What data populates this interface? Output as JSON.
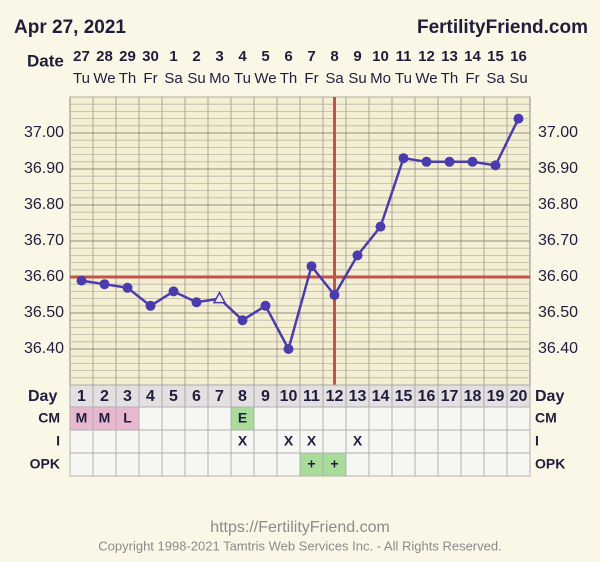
{
  "chart_data": {
    "type": "line",
    "title": "Apr 27, 2021",
    "site": "FertilityFriend.com",
    "date_label": "Date",
    "dates": [
      "27",
      "28",
      "29",
      "30",
      "1",
      "2",
      "3",
      "4",
      "5",
      "6",
      "7",
      "8",
      "9",
      "10",
      "11",
      "12",
      "13",
      "14",
      "15",
      "16"
    ],
    "weekdays": [
      "Tu",
      "We",
      "Th",
      "Fr",
      "Sa",
      "Su",
      "Mo",
      "Tu",
      "We",
      "Th",
      "Fr",
      "Sa",
      "Su",
      "Mo",
      "Tu",
      "We",
      "Th",
      "Fr",
      "Sa",
      "Su"
    ],
    "day_label": "Day",
    "categories": [
      1,
      2,
      3,
      4,
      5,
      6,
      7,
      8,
      9,
      10,
      11,
      12,
      13,
      14,
      15,
      16,
      17,
      18,
      19,
      20
    ],
    "values": [
      36.59,
      36.58,
      36.57,
      36.52,
      36.56,
      36.53,
      36.54,
      36.48,
      36.52,
      36.4,
      36.63,
      36.55,
      36.66,
      36.74,
      36.93,
      36.92,
      36.92,
      36.92,
      36.91,
      37.04
    ],
    "color": "#4b3cae",
    "hollow_points": [
      7
    ],
    "coverline": 36.6,
    "ovulation_day": 12,
    "marker_line_color": "#c55149",
    "ylim": [
      36.3,
      37.1
    ],
    "yticks": [
      {
        "value": 36.4,
        "label": "36.40"
      },
      {
        "value": 36.5,
        "label": "36.50"
      },
      {
        "value": 36.6,
        "label": "36.60"
      },
      {
        "value": 36.7,
        "label": "36.70"
      },
      {
        "value": 36.8,
        "label": "36.80"
      },
      {
        "value": 36.9,
        "label": "36.90"
      },
      {
        "value": 37,
        "label": "37.00"
      }
    ],
    "rows": [
      {
        "label": "CM",
        "values": [
          "M",
          "M",
          "L",
          null,
          null,
          null,
          null,
          "E",
          null,
          null,
          null,
          null,
          null,
          null,
          null,
          null,
          null,
          null,
          null,
          null
        ],
        "colors": {
          "M": "#e8b8d0",
          "L": "#e8b8d0",
          "E": "#a9dc9a"
        }
      },
      {
        "label": "I",
        "values": [
          null,
          null,
          null,
          null,
          null,
          null,
          null,
          "X",
          null,
          "X",
          "X",
          null,
          "X",
          null,
          null,
          null,
          null,
          null,
          null,
          null
        ],
        "colors": {}
      },
      {
        "label": "OPK",
        "values": [
          null,
          null,
          null,
          null,
          null,
          null,
          null,
          null,
          null,
          null,
          "+",
          "+",
          null,
          null,
          null,
          null,
          null,
          null,
          null,
          null
        ],
        "colors": {
          "+": "#a9dc9a"
        }
      }
    ],
    "url": "https://FertilityFriend.com",
    "copyright": "Copyright 1998-2021 Tamtris Web Services Inc. - All Rights Reserved."
  }
}
